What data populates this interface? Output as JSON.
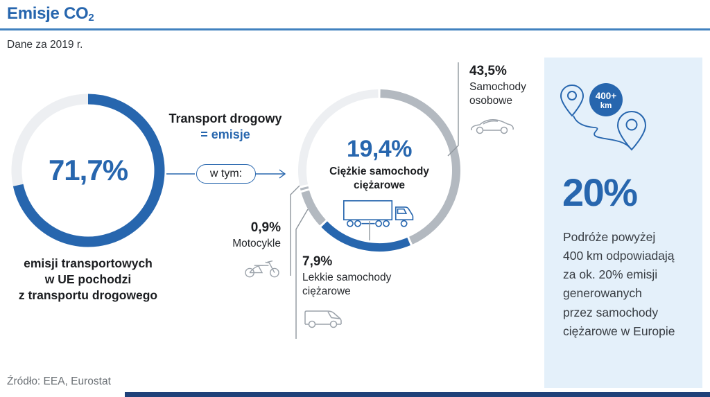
{
  "header": {
    "title": "Emisje CO",
    "title_sub": "2",
    "subtitle": "Dane za 2019 r."
  },
  "colors": {
    "accent": "#2766ae",
    "rule": "#4181bf",
    "gray": "#b3b9c0",
    "light": "#edeff2",
    "panel_bg": "#e4f0fa",
    "leader": "#8f969d",
    "icon_gray": "#9ba2aa",
    "footer_bar": "#1f4179"
  },
  "flow": {
    "heading_line1": "Transport drogowy",
    "heading_line2": "= emisje",
    "pill_label": "w tym:"
  },
  "chart_data": [
    {
      "type": "donut",
      "name": "udzial-transportu-drogowego-w-emisjach",
      "center_value": "71,7%",
      "center_value_pct": 71.7,
      "caption": "emisji transportowych\nw UE pochodzi\nz transportu drogowego",
      "gap_deg": 0,
      "start_angle_deg": 0,
      "segments": [
        {
          "label": "transport drogowy",
          "pct": 71.7,
          "color": "accent"
        },
        {
          "label": "",
          "pct": 28.3,
          "color": "light"
        }
      ]
    },
    {
      "type": "donut",
      "name": "struktura-emisji-transportu-drogowego",
      "center_value": "19,4%",
      "center_value_pct": 19.4,
      "center_label": "Ciężkie samochody\nciężarowe",
      "gap_deg": 1.6,
      "start_angle_deg": 0,
      "segments": [
        {
          "label": "Samochody osobowe",
          "pct": 43.5,
          "color": "gray"
        },
        {
          "label": "Ciężkie samochody ciężarowe",
          "pct": 19.4,
          "color": "accent"
        },
        {
          "label": "Lekkie samochody ciężarowe",
          "pct": 7.9,
          "color": "gray"
        },
        {
          "label": "Motocykle",
          "pct": 0.9,
          "color": "gray"
        },
        {
          "label": "",
          "pct": 28.3,
          "color": "light"
        }
      ]
    }
  ],
  "labels": {
    "cars": {
      "value": "43,5%",
      "name": "Samochody\nosobowe"
    },
    "moto": {
      "value": "0,9%",
      "name": "Motocykle"
    },
    "vans": {
      "value": "7,9%",
      "name": "Lekkie samochody\nciężarowe"
    }
  },
  "panel": {
    "badge_value": "400+",
    "badge_unit": "km",
    "stat": "20%",
    "text": "Podróże powyżej\n400 km odpowiadają\nza ok. 20% emisji\ngenerowanych\nprzez samochody\nciężarowe w Europie"
  },
  "footer": {
    "source": "Źródło: EEA, Eurostat"
  }
}
